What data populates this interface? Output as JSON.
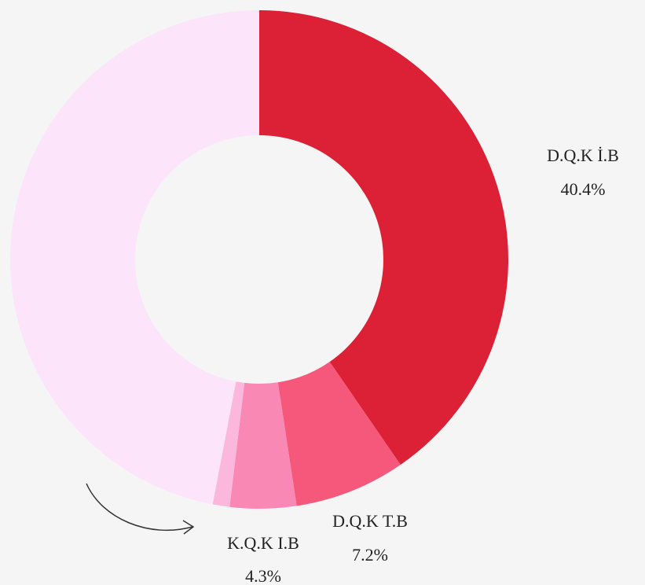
{
  "chart_data": {
    "type": "donut",
    "categories": [
      "D.Q.K İ.B",
      "D.Q.K T.B",
      "K.Q.K I.B",
      null,
      null
    ],
    "values": [
      40.4,
      7.2,
      4.3,
      1.1,
      47.0
    ],
    "value_labels": [
      "40.4%",
      "7.2%",
      "4.3%",
      null,
      null
    ],
    "colors": [
      "#dc2035",
      "#f5587a",
      "#fa88b5",
      "#fbb8dc",
      "#fce4fb"
    ]
  }
}
